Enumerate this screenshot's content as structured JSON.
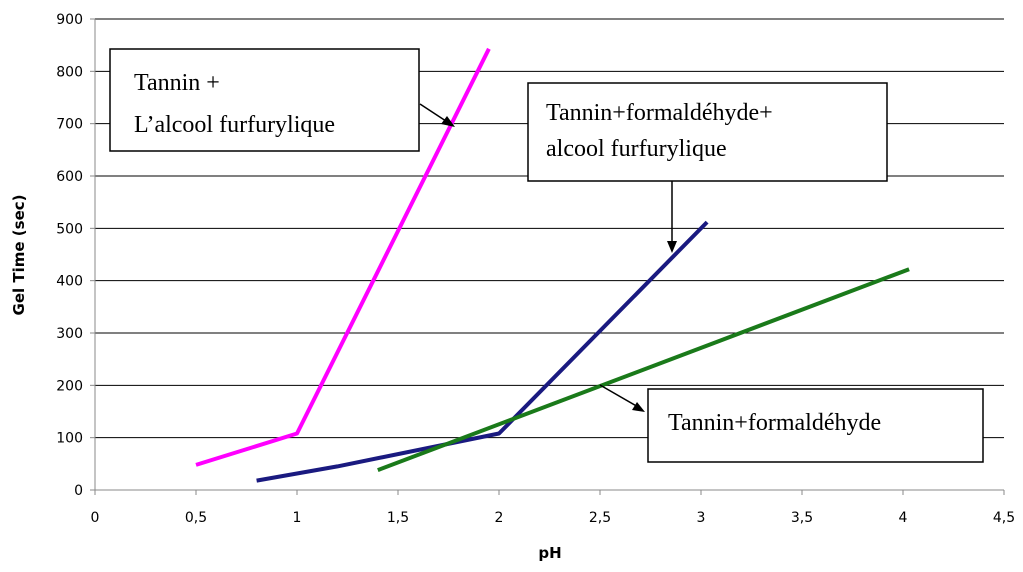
{
  "chart_data": {
    "type": "line",
    "xlabel": "pH",
    "ylabel": "Gel Time (sec)",
    "xlim": [
      0,
      4.5
    ],
    "ylim": [
      0,
      900
    ],
    "x_ticks": [
      "0",
      "0,5",
      "1",
      "1,5",
      "2",
      "2,5",
      "3",
      "3,5",
      "4",
      "4,5"
    ],
    "y_ticks": [
      "0",
      "100",
      "200",
      "300",
      "400",
      "500",
      "600",
      "700",
      "800",
      "900"
    ],
    "grid": "horizontal",
    "series": [
      {
        "color": "#ff00ff",
        "points": [
          [
            0.5,
            48
          ],
          [
            1.0,
            108
          ],
          [
            1.95,
            843
          ]
        ]
      },
      {
        "color": "#1a1a80",
        "points": [
          [
            0.8,
            18
          ],
          [
            1.2,
            45
          ],
          [
            2.0,
            108
          ],
          [
            3.03,
            512
          ]
        ]
      },
      {
        "color": "#1a7a1a",
        "points": [
          [
            1.4,
            38
          ],
          [
            4.03,
            422
          ]
        ]
      }
    ],
    "annotations": [
      {
        "lines": [
          "Tannin +",
          "L’alcool furfurylique"
        ]
      },
      {
        "lines": [
          "Tannin+formaldéhyde+",
          "alcool furfurylique"
        ]
      },
      {
        "lines": [
          "Tannin+formaldéhyde"
        ]
      }
    ]
  }
}
